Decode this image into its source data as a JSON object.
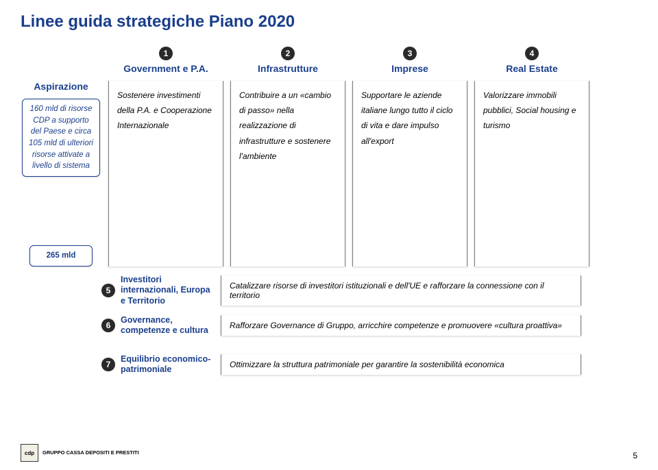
{
  "title": {
    "text": "Linee guida strategiche Piano 2020",
    "color": "#1a3e8c"
  },
  "colors": {
    "title": "#1a3e8c",
    "num_bg": "#2a2a2a",
    "border": "#7a7a7a",
    "side_border": "#1a3e8c",
    "side_text": "#1a3e8c"
  },
  "columns": [
    {
      "num": "1",
      "label": "Government e P.A."
    },
    {
      "num": "2",
      "label": "Infrastrutture"
    },
    {
      "num": "3",
      "label": "Imprese"
    },
    {
      "num": "4",
      "label": "Real Estate"
    }
  ],
  "aspirazione": {
    "label": "Aspirazione",
    "box_lines": "160 mld di risorse CDP a supporto del Paese e circa 105 mld di ulteriori risorse attivate a livello di sistema",
    "mld_box": "265 mld"
  },
  "verticals": [
    "Sostenere investimenti della P.A. e Cooperazione Internazionale",
    "Contribuire a un «cambio di passo» nella realizzazione di infrastrutture e sostenere l'ambiente",
    "Supportare le aziende italiane lungo tutto il ciclo di vita e dare impulso all'export",
    "Valorizzare immobili pubblici, Social housing e turismo"
  ],
  "rows": [
    {
      "num": "5",
      "label": "Investitori internazionali, Europa e Territorio",
      "text": "Catalizzare risorse di investitori istituzionali e dell'UE e rafforzare la connessione con il territorio"
    },
    {
      "num": "6",
      "label": "Governance, competenze e cultura",
      "text": "Rafforzare Governance di Gruppo, arricchire competenze e promuovere «cultura proattiva»"
    },
    {
      "num": "7",
      "label": "Equilibrio economico-patrimoniale",
      "text": "Ottimizzare la struttura patrimoniale per garantire la sostenibilità economica"
    }
  ],
  "pagenum": "5",
  "logo": {
    "sq": "cdp",
    "text": "GRUPPO CASSA DEPOSITI E PRESTITI"
  }
}
